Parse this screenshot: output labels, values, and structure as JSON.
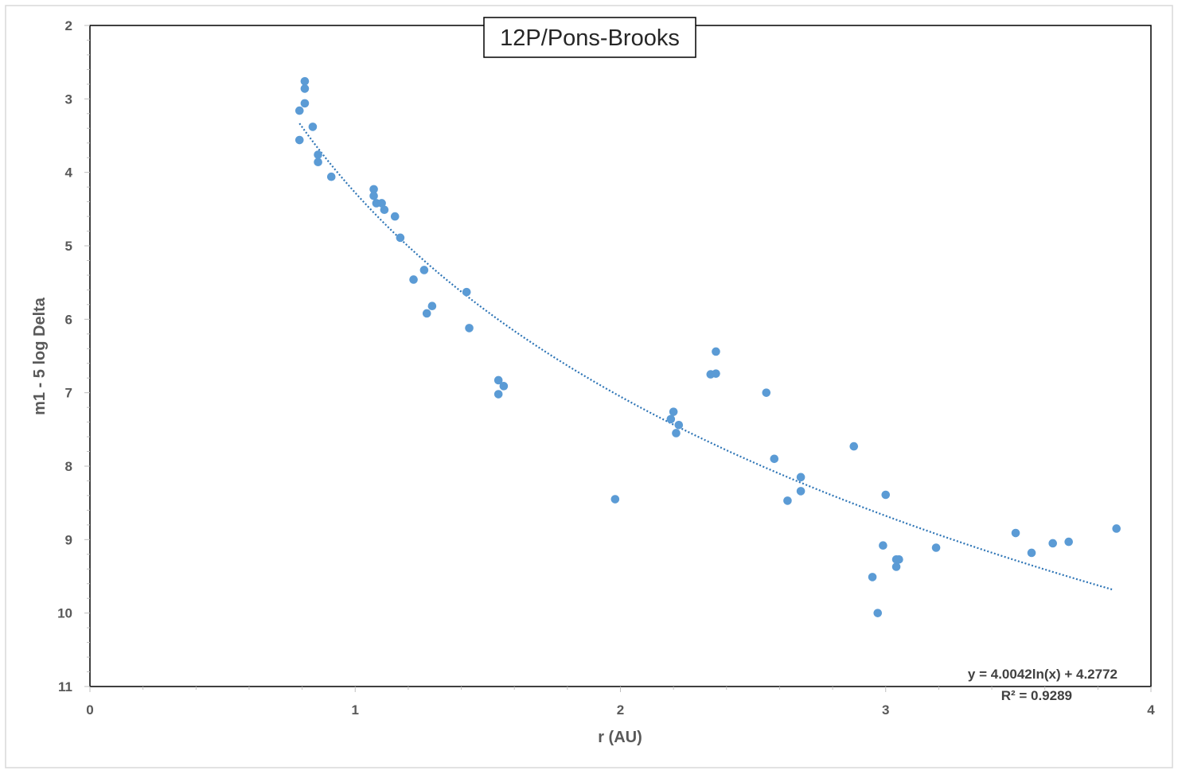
{
  "chart_data": {
    "type": "scatter",
    "title": "12P/Pons-Brooks",
    "xlabel": "r (AU)",
    "ylabel": "m1 - 5 log Delta",
    "xlim": [
      0,
      4
    ],
    "ylim": [
      2,
      11
    ],
    "y_inverted": true,
    "x_ticks": [
      "0",
      "1",
      "2",
      "3",
      "4"
    ],
    "y_ticks": [
      "2",
      "3",
      "4",
      "5",
      "6",
      "7",
      "8",
      "9",
      "10",
      "11"
    ],
    "grid": false,
    "marker_color": "#5B9BD5",
    "trendline": {
      "type": "logarithmic",
      "a": 4.0042,
      "b": 4.2772,
      "x_range": [
        0.79,
        3.86
      ],
      "equation_label": "y = 4.0042ln(x) + 4.2772",
      "r2_label": "R² = 0.9289",
      "color": "#2E75B6"
    },
    "series": [
      {
        "points": [
          [
            0.79,
            3.56
          ],
          [
            0.79,
            3.16
          ],
          [
            0.81,
            3.06
          ],
          [
            0.81,
            2.86
          ],
          [
            0.81,
            2.76
          ],
          [
            0.84,
            3.38
          ],
          [
            0.86,
            3.76
          ],
          [
            0.86,
            3.86
          ],
          [
            0.91,
            4.06
          ],
          [
            1.07,
            4.23
          ],
          [
            1.07,
            4.32
          ],
          [
            1.08,
            4.42
          ],
          [
            1.1,
            4.42
          ],
          [
            1.11,
            4.51
          ],
          [
            1.15,
            4.6
          ],
          [
            1.17,
            4.89
          ],
          [
            1.22,
            5.46
          ],
          [
            1.26,
            5.33
          ],
          [
            1.27,
            5.92
          ],
          [
            1.29,
            5.82
          ],
          [
            1.42,
            5.63
          ],
          [
            1.43,
            6.12
          ],
          [
            1.54,
            6.83
          ],
          [
            1.54,
            7.02
          ],
          [
            1.56,
            6.91
          ],
          [
            1.98,
            8.45
          ],
          [
            2.19,
            7.36
          ],
          [
            2.2,
            7.26
          ],
          [
            2.21,
            7.55
          ],
          [
            2.22,
            7.44
          ],
          [
            2.34,
            6.75
          ],
          [
            2.36,
            6.74
          ],
          [
            2.36,
            6.44
          ],
          [
            2.55,
            7.0
          ],
          [
            2.58,
            7.9
          ],
          [
            2.63,
            8.47
          ],
          [
            2.68,
            8.15
          ],
          [
            2.68,
            8.34
          ],
          [
            2.88,
            7.73
          ],
          [
            2.95,
            9.51
          ],
          [
            2.97,
            10.0
          ],
          [
            2.99,
            9.08
          ],
          [
            3.0,
            8.39
          ],
          [
            3.04,
            9.37
          ],
          [
            3.04,
            9.27
          ],
          [
            3.05,
            9.27
          ],
          [
            3.19,
            9.11
          ],
          [
            3.49,
            8.91
          ],
          [
            3.55,
            9.18
          ],
          [
            3.63,
            9.05
          ],
          [
            3.69,
            9.03
          ],
          [
            3.87,
            8.85
          ]
        ]
      }
    ]
  }
}
